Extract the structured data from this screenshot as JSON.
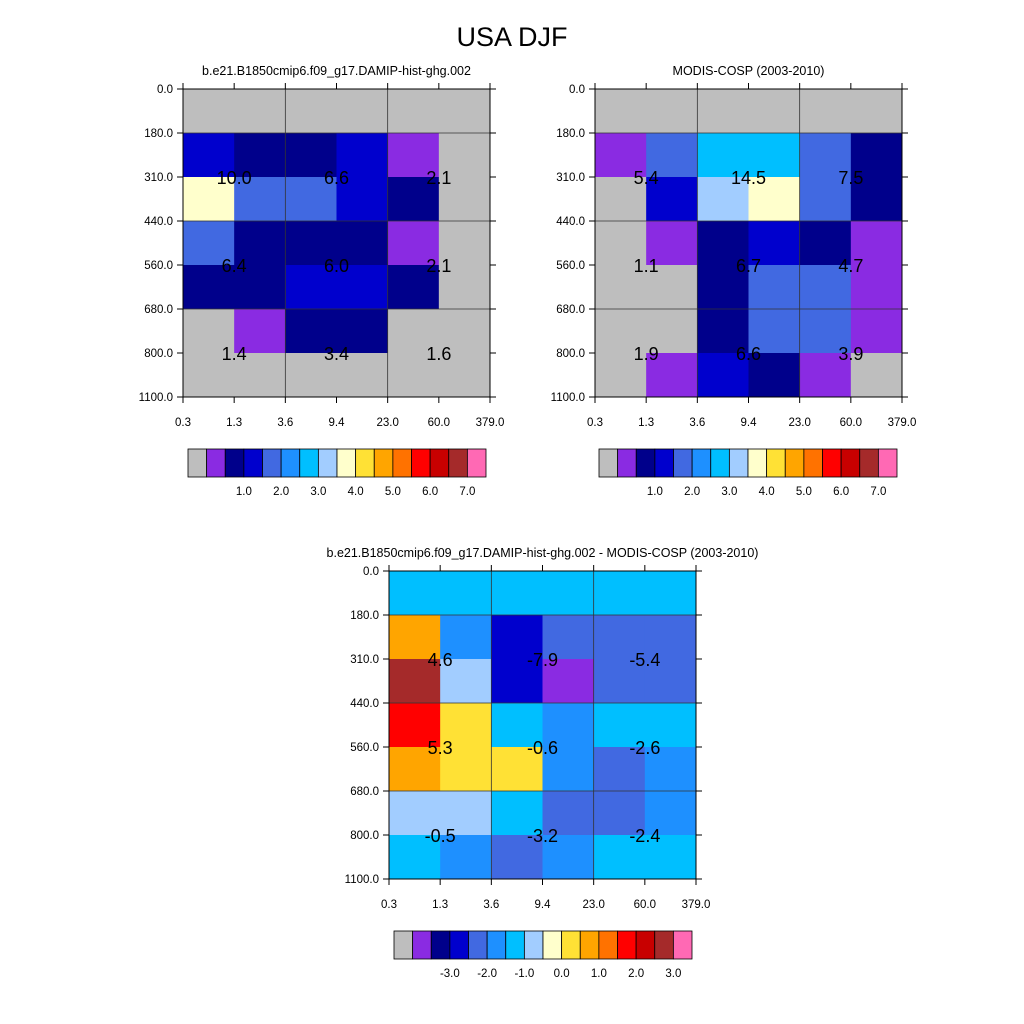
{
  "title": "USA DJF",
  "chart_data": [
    {
      "type": "heatmap",
      "title": "b.e21.B1850cmip6.f09_g17.DAMIP-hist-ghg.002",
      "xlabel": "",
      "ylabel": "",
      "x_ticks": [
        "0.3",
        "1.3",
        "3.6",
        "9.4",
        "23.0",
        "60.0",
        "379.0"
      ],
      "y_ticks": [
        "0.0",
        "180.0",
        "310.0",
        "440.0",
        "560.0",
        "680.0",
        "800.0",
        "1100.0"
      ],
      "levels": [
        0,
        0.5,
        1,
        1.5,
        2,
        2.5,
        3,
        3.5,
        4,
        4.5,
        5,
        5.5,
        6,
        6.5,
        7,
        7.5
      ],
      "values": [
        [
          null,
          null,
          null,
          null,
          null,
          null
        ],
        [
          1.8,
          1.3,
          1.3,
          1.8,
          0.7,
          null
        ],
        [
          4.2,
          2.3,
          2.3,
          1.8,
          1.3,
          null
        ],
        [
          2.3,
          1.3,
          1.3,
          1.3,
          0.7,
          null
        ],
        [
          1.3,
          1.3,
          1.8,
          1.8,
          1.3,
          null
        ],
        [
          null,
          0.7,
          1.3,
          1.3,
          null,
          null
        ],
        [
          null,
          null,
          null,
          null,
          null,
          null
        ]
      ],
      "group_labels": [
        {
          "row": 1,
          "col": 0,
          "text": "10.0"
        },
        {
          "row": 1,
          "col": 1,
          "text": "6.6"
        },
        {
          "row": 1,
          "col": 2,
          "text": "2.1"
        },
        {
          "row": 2,
          "col": 0,
          "text": "6.4"
        },
        {
          "row": 2,
          "col": 1,
          "text": "6.0"
        },
        {
          "row": 2,
          "col": 2,
          "text": "2.1"
        },
        {
          "row": 3,
          "col": 0,
          "text": "1.4"
        },
        {
          "row": 3,
          "col": 1,
          "text": "3.4"
        },
        {
          "row": 3,
          "col": 2,
          "text": "1.6"
        }
      ],
      "colorbar_labels": [
        "1.0",
        "2.0",
        "3.0",
        "4.0",
        "5.0",
        "6.0",
        "7.0"
      ],
      "colors": [
        "#bebebe",
        "#8a2be2",
        "#00008b",
        "#0000cd",
        "#4169e1",
        "#1e90ff",
        "#00bfff",
        "#a2cdff",
        "#ffffcc",
        "#ffe135",
        "#ffa500",
        "#ff7200",
        "#ff0000",
        "#c80000",
        "#a52a2a",
        "#ff69b4"
      ]
    },
    {
      "type": "heatmap",
      "title": "MODIS-COSP (2003-2010)",
      "xlabel": "",
      "ylabel": "",
      "x_ticks": [
        "0.3",
        "1.3",
        "3.6",
        "9.4",
        "23.0",
        "60.0",
        "379.0"
      ],
      "y_ticks": [
        "0.0",
        "180.0",
        "310.0",
        "440.0",
        "560.0",
        "680.0",
        "800.0",
        "1100.0"
      ],
      "levels": [
        0,
        0.5,
        1,
        1.5,
        2,
        2.5,
        3,
        3.5,
        4,
        4.5,
        5,
        5.5,
        6,
        6.5,
        7,
        7.5
      ],
      "values": [
        [
          null,
          null,
          null,
          null,
          null,
          null
        ],
        [
          0.7,
          2.3,
          3.2,
          3.2,
          2.3,
          1.3
        ],
        [
          null,
          1.8,
          3.7,
          4.2,
          2.3,
          1.3
        ],
        [
          null,
          0.7,
          1.3,
          1.8,
          1.3,
          0.7
        ],
        [
          null,
          null,
          1.3,
          2.3,
          2.3,
          0.7
        ],
        [
          null,
          null,
          1.3,
          2.3,
          2.3,
          0.7
        ],
        [
          null,
          0.7,
          1.8,
          1.3,
          0.7,
          null
        ]
      ],
      "group_labels": [
        {
          "row": 1,
          "col": 0,
          "text": "5.4"
        },
        {
          "row": 1,
          "col": 1,
          "text": "14.5"
        },
        {
          "row": 1,
          "col": 2,
          "text": "7.5"
        },
        {
          "row": 2,
          "col": 0,
          "text": "1.1"
        },
        {
          "row": 2,
          "col": 1,
          "text": "6.7"
        },
        {
          "row": 2,
          "col": 2,
          "text": "4.7"
        },
        {
          "row": 3,
          "col": 0,
          "text": "1.9"
        },
        {
          "row": 3,
          "col": 1,
          "text": "6.6"
        },
        {
          "row": 3,
          "col": 2,
          "text": "3.9"
        }
      ],
      "colorbar_labels": [
        "1.0",
        "2.0",
        "3.0",
        "4.0",
        "5.0",
        "6.0",
        "7.0"
      ],
      "colors": [
        "#bebebe",
        "#8a2be2",
        "#00008b",
        "#0000cd",
        "#4169e1",
        "#1e90ff",
        "#00bfff",
        "#a2cdff",
        "#ffffcc",
        "#ffe135",
        "#ffa500",
        "#ff7200",
        "#ff0000",
        "#c80000",
        "#a52a2a",
        "#ff69b4"
      ]
    },
    {
      "type": "heatmap",
      "title": "b.e21.B1850cmip6.f09_g17.DAMIP-hist-ghg.002 - MODIS-COSP (2003-2010)",
      "xlabel": "",
      "ylabel": "",
      "x_ticks": [
        "0.3",
        "1.3",
        "3.6",
        "9.4",
        "23.0",
        "60.0",
        "379.0"
      ],
      "y_ticks": [
        "0.0",
        "180.0",
        "310.0",
        "440.0",
        "560.0",
        "680.0",
        "800.0",
        "1100.0"
      ],
      "levels": [
        -3.75,
        -3.25,
        -2.75,
        -2.25,
        -1.75,
        -1.25,
        -0.75,
        -0.25,
        0.25,
        0.75,
        1.25,
        1.75,
        2.25,
        2.75,
        3.25,
        3.75
      ],
      "values": [
        [
          -0.5,
          -0.5,
          -0.5,
          -0.5,
          -0.5,
          -0.5
        ],
        [
          1.5,
          -1.0,
          -2.0,
          -1.5,
          -1.5,
          -1.5
        ],
        [
          3.5,
          0.0,
          -2.0,
          -3.0,
          -1.5,
          -1.5
        ],
        [
          2.5,
          1.0,
          -0.5,
          -1.0,
          -0.5,
          -0.5
        ],
        [
          1.5,
          1.0,
          1.0,
          -1.0,
          -1.5,
          -1.0
        ],
        [
          0.0,
          0.0,
          -0.5,
          -1.5,
          -1.5,
          -1.0
        ],
        [
          -0.5,
          -1.0,
          -1.5,
          -1.0,
          -0.5,
          -0.5
        ]
      ],
      "group_labels": [
        {
          "row": 1,
          "col": 0,
          "text": "4.6"
        },
        {
          "row": 1,
          "col": 1,
          "text": "-7.9"
        },
        {
          "row": 1,
          "col": 2,
          "text": "-5.4"
        },
        {
          "row": 2,
          "col": 0,
          "text": "5.3"
        },
        {
          "row": 2,
          "col": 1,
          "text": "-0.6"
        },
        {
          "row": 2,
          "col": 2,
          "text": "-2.6"
        },
        {
          "row": 3,
          "col": 0,
          "text": "-0.5"
        },
        {
          "row": 3,
          "col": 1,
          "text": "-3.2"
        },
        {
          "row": 3,
          "col": 2,
          "text": "-2.4"
        }
      ],
      "colorbar_labels": [
        "-3.0",
        "-2.0",
        "-1.0",
        "0.0",
        "1.0",
        "2.0",
        "3.0"
      ],
      "colors": [
        "#bebebe",
        "#8a2be2",
        "#00008b",
        "#0000cd",
        "#4169e1",
        "#1e90ff",
        "#00bfff",
        "#a2cdff",
        "#ffffcc",
        "#ffe135",
        "#ffa500",
        "#ff7200",
        "#ff0000",
        "#c80000",
        "#a52a2a",
        "#ff69b4"
      ]
    }
  ]
}
